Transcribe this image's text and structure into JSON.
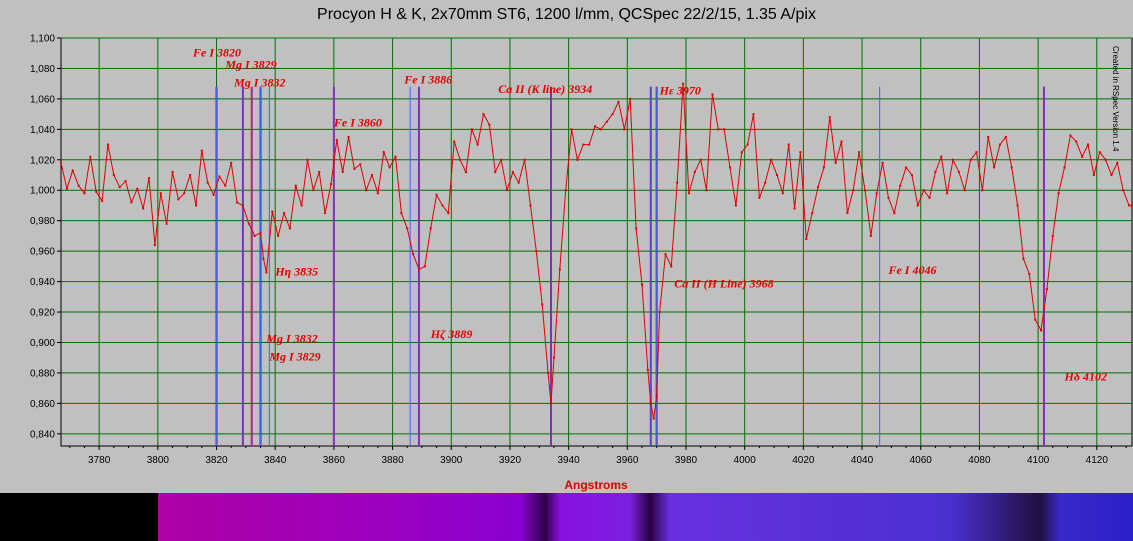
{
  "chart_data": {
    "type": "line",
    "title": "Procyon H & K, 2x70mm ST6, 1200 l/mm, QCSpec 22/2/15, 1.35 A/pix",
    "xlabel": "Angstroms",
    "ylabel": "",
    "xlim": [
      3767,
      4132
    ],
    "ylim": [
      0.832,
      1.1
    ],
    "x_ticks": [
      3780,
      3800,
      3820,
      3840,
      3860,
      3880,
      3900,
      3920,
      3940,
      3960,
      3980,
      4000,
      4020,
      4040,
      4060,
      4080,
      4100,
      4120
    ],
    "y_ticks": [
      "0,840",
      "0,860",
      "0,880",
      "0,900",
      "0,920",
      "0,940",
      "0,960",
      "0,980",
      "1,000",
      "1,020",
      "1,040",
      "1,060",
      "1,080",
      "1,100"
    ],
    "grid": true,
    "series_color": "#e00000",
    "grid_color": "#007000",
    "series": [
      {
        "points": [
          [
            3767,
            1.018
          ],
          [
            3769,
            1.001
          ],
          [
            3771,
            1.013
          ],
          [
            3773,
            1.003
          ],
          [
            3775,
            0.998
          ],
          [
            3777,
            1.022
          ],
          [
            3779,
            0.999
          ],
          [
            3781,
            0.993
          ],
          [
            3783,
            1.03
          ],
          [
            3785,
            1.01
          ],
          [
            3787,
            1.002
          ],
          [
            3789,
            1.006
          ],
          [
            3791,
            0.992
          ],
          [
            3793,
            1.001
          ],
          [
            3795,
            0.988
          ],
          [
            3797,
            1.008
          ],
          [
            3799,
            0.964
          ],
          [
            3801,
            0.998
          ],
          [
            3803,
            0.978
          ],
          [
            3805,
            1.012
          ],
          [
            3807,
            0.994
          ],
          [
            3809,
            0.998
          ],
          [
            3811,
            1.01
          ],
          [
            3813,
            0.99
          ],
          [
            3815,
            1.026
          ],
          [
            3817,
            1.005
          ],
          [
            3819,
            0.997
          ],
          [
            3821,
            1.009
          ],
          [
            3823,
            1.003
          ],
          [
            3825,
            1.018
          ],
          [
            3827,
            0.992
          ],
          [
            3829,
            0.99
          ],
          [
            3831,
            0.978
          ],
          [
            3833,
            0.97
          ],
          [
            3835,
            0.972
          ],
          [
            3836,
            0.955
          ],
          [
            3837,
            0.946
          ],
          [
            3839,
            0.986
          ],
          [
            3841,
            0.97
          ],
          [
            3843,
            0.985
          ],
          [
            3845,
            0.975
          ],
          [
            3847,
            1.003
          ],
          [
            3849,
            0.99
          ],
          [
            3851,
            1.02
          ],
          [
            3853,
            1.0
          ],
          [
            3855,
            1.012
          ],
          [
            3857,
            0.985
          ],
          [
            3859,
            1.004
          ],
          [
            3861,
            1.033
          ],
          [
            3863,
            1.012
          ],
          [
            3865,
            1.035
          ],
          [
            3867,
            1.014
          ],
          [
            3869,
            1.017
          ],
          [
            3871,
            1.0
          ],
          [
            3873,
            1.01
          ],
          [
            3875,
            0.998
          ],
          [
            3877,
            1.025
          ],
          [
            3879,
            1.015
          ],
          [
            3881,
            1.022
          ],
          [
            3883,
            0.985
          ],
          [
            3885,
            0.975
          ],
          [
            3887,
            0.958
          ],
          [
            3889,
            0.948
          ],
          [
            3891,
            0.95
          ],
          [
            3893,
            0.975
          ],
          [
            3895,
            0.997
          ],
          [
            3897,
            0.99
          ],
          [
            3899,
            0.985
          ],
          [
            3901,
            1.032
          ],
          [
            3903,
            1.02
          ],
          [
            3905,
            1.012
          ],
          [
            3907,
            1.04
          ],
          [
            3909,
            1.03
          ],
          [
            3911,
            1.05
          ],
          [
            3913,
            1.043
          ],
          [
            3915,
            1.012
          ],
          [
            3917,
            1.02
          ],
          [
            3919,
            1.0
          ],
          [
            3921,
            1.012
          ],
          [
            3923,
            1.005
          ],
          [
            3925,
            1.02
          ],
          [
            3927,
            0.99
          ],
          [
            3929,
            0.96
          ],
          [
            3931,
            0.925
          ],
          [
            3933,
            0.88
          ],
          [
            3934,
            0.86
          ],
          [
            3935,
            0.89
          ],
          [
            3937,
            0.948
          ],
          [
            3939,
            1.0
          ],
          [
            3941,
            1.04
          ],
          [
            3943,
            1.02
          ],
          [
            3945,
            1.03
          ],
          [
            3947,
            1.03
          ],
          [
            3949,
            1.042
          ],
          [
            3951,
            1.04
          ],
          [
            3953,
            1.045
          ],
          [
            3955,
            1.05
          ],
          [
            3957,
            1.058
          ],
          [
            3959,
            1.04
          ],
          [
            3961,
            1.06
          ],
          [
            3963,
            0.975
          ],
          [
            3965,
            0.938
          ],
          [
            3967,
            0.882
          ],
          [
            3968,
            0.86
          ],
          [
            3969,
            0.85
          ],
          [
            3970,
            0.865
          ],
          [
            3971,
            0.92
          ],
          [
            3973,
            0.958
          ],
          [
            3975,
            0.95
          ],
          [
            3977,
            1.005
          ],
          [
            3979,
            1.07
          ],
          [
            3981,
            0.998
          ],
          [
            3983,
            1.012
          ],
          [
            3985,
            1.02
          ],
          [
            3987,
            1.0
          ],
          [
            3989,
            1.063
          ],
          [
            3991,
            1.04
          ],
          [
            3993,
            1.04
          ],
          [
            3995,
            1.015
          ],
          [
            3997,
            0.99
          ],
          [
            3999,
            1.025
          ],
          [
            4001,
            1.03
          ],
          [
            4003,
            1.05
          ],
          [
            4005,
            0.995
          ],
          [
            4007,
            1.005
          ],
          [
            4009,
            1.02
          ],
          [
            4011,
            1.01
          ],
          [
            4013,
            0.998
          ],
          [
            4015,
            1.03
          ],
          [
            4017,
            0.988
          ],
          [
            4019,
            1.025
          ],
          [
            4021,
            0.968
          ],
          [
            4023,
            0.985
          ],
          [
            4025,
            1.002
          ],
          [
            4027,
            1.015
          ],
          [
            4029,
            1.048
          ],
          [
            4031,
            1.018
          ],
          [
            4033,
            1.032
          ],
          [
            4035,
            0.985
          ],
          [
            4037,
            1.0
          ],
          [
            4039,
            1.025
          ],
          [
            4041,
            1.0
          ],
          [
            4043,
            0.97
          ],
          [
            4045,
            0.998
          ],
          [
            4047,
            1.018
          ],
          [
            4049,
            0.995
          ],
          [
            4051,
            0.985
          ],
          [
            4053,
            1.003
          ],
          [
            4055,
            1.015
          ],
          [
            4057,
            1.01
          ],
          [
            4059,
            0.99
          ],
          [
            4061,
            1.0
          ],
          [
            4063,
            0.995
          ],
          [
            4065,
            1.012
          ],
          [
            4067,
            1.022
          ],
          [
            4069,
            0.998
          ],
          [
            4071,
            1.02
          ],
          [
            4073,
            1.012
          ],
          [
            4075,
            1.0
          ],
          [
            4077,
            1.02
          ],
          [
            4079,
            1.025
          ],
          [
            4081,
            1.0
          ],
          [
            4083,
            1.035
          ],
          [
            4085,
            1.015
          ],
          [
            4087,
            1.03
          ],
          [
            4089,
            1.035
          ],
          [
            4091,
            1.015
          ],
          [
            4093,
            0.99
          ],
          [
            4095,
            0.955
          ],
          [
            4097,
            0.945
          ],
          [
            4099,
            0.915
          ],
          [
            4101,
            0.908
          ],
          [
            4103,
            0.935
          ],
          [
            4105,
            0.97
          ],
          [
            4107,
            0.998
          ],
          [
            4109,
            1.015
          ],
          [
            4111,
            1.036
          ],
          [
            4113,
            1.032
          ],
          [
            4115,
            1.022
          ],
          [
            4117,
            1.03
          ],
          [
            4119,
            1.01
          ],
          [
            4121,
            1.025
          ],
          [
            4123,
            1.02
          ],
          [
            4125,
            1.01
          ],
          [
            4127,
            1.018
          ],
          [
            4129,
            1.0
          ],
          [
            4131,
            0.99
          ],
          [
            4132,
            0.99
          ]
        ]
      }
    ],
    "markers": [
      {
        "x": 3820,
        "color": "#c00060"
      },
      {
        "x": 3829,
        "color": "#c00060"
      },
      {
        "x": 3832,
        "color": "#c00060"
      },
      {
        "x": 3835,
        "color": "#c00060"
      },
      {
        "x": 3860,
        "color": "#c00060"
      },
      {
        "x": 3889,
        "color": "#c00060"
      },
      {
        "x": 3934,
        "color": "#c00060"
      },
      {
        "x": 3968,
        "color": "#c00060"
      },
      {
        "x": 3970,
        "color": "#c00060"
      },
      {
        "x": 4102,
        "color": "#c00060"
      },
      {
        "x": 3820,
        "color": "#4060ff"
      },
      {
        "x": 3829,
        "color": "#4060ff"
      },
      {
        "x": 3832,
        "color": "#4060ff"
      },
      {
        "x": 3835,
        "color": "#4060ff"
      },
      {
        "x": 3838,
        "color": "#4060ff"
      },
      {
        "x": 3860,
        "color": "#4060ff"
      },
      {
        "x": 3886,
        "color": "#4060ff"
      },
      {
        "x": 3889,
        "color": "#4060ff"
      },
      {
        "x": 3934,
        "color": "#4060ff"
      },
      {
        "x": 3968,
        "color": "#4060ff"
      },
      {
        "x": 3970,
        "color": "#4060ff"
      },
      {
        "x": 4046,
        "color": "#4060ff"
      },
      {
        "x": 4102,
        "color": "#4060ff"
      }
    ],
    "annotations": [
      {
        "text": "Fe I 3820",
        "x": 3812,
        "y": 1.088
      },
      {
        "text": "Mg I 3829",
        "x": 3823,
        "y": 1.08
      },
      {
        "text": "Mg I 3832",
        "x": 3826,
        "y": 1.068
      },
      {
        "text": "Fe I 3860",
        "x": 3860,
        "y": 1.042
      },
      {
        "text": "Fe I 3886",
        "x": 3884,
        "y": 1.07
      },
      {
        "text": "Ca II (K line) 3934",
        "x": 3916,
        "y": 1.064
      },
      {
        "text": "Hε 3970",
        "x": 3971,
        "y": 1.063
      },
      {
        "text": "Hη 3835",
        "x": 3840,
        "y": 0.944
      },
      {
        "text": "Mg I 3832",
        "x": 3837,
        "y": 0.9
      },
      {
        "text": "Mg I 3829",
        "x": 3838,
        "y": 0.888
      },
      {
        "text": "Hζ 3889",
        "x": 3893,
        "y": 0.903
      },
      {
        "text": "Ca II (H Line) 3968",
        "x": 3976,
        "y": 0.936
      },
      {
        "text": "Fe I 4046",
        "x": 4049,
        "y": 0.945
      },
      {
        "text": "Hδ 4102",
        "x": 4109,
        "y": 0.875
      }
    ]
  },
  "watermark": "Created in RSpec Version 1.4"
}
